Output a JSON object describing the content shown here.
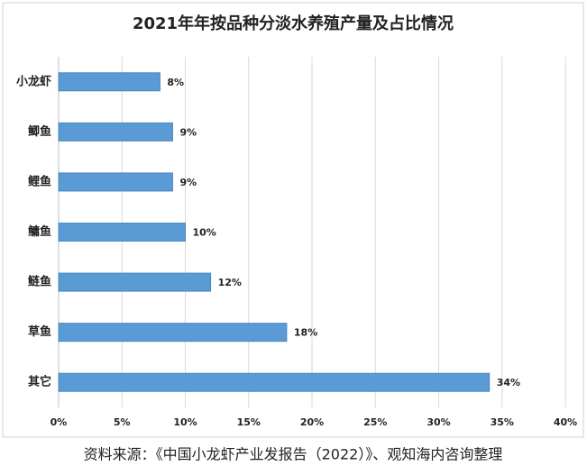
{
  "chart_data": {
    "type": "bar",
    "orientation": "horizontal",
    "title": "2021年年按品种分淡水养殖产量及占比情况",
    "categories": [
      "小龙虾",
      "鲫鱼",
      "鲤鱼",
      "鳙鱼",
      "鲢鱼",
      "草鱼",
      "其它"
    ],
    "values": [
      8,
      9,
      9,
      10,
      12,
      18,
      34
    ],
    "value_labels": [
      "8%",
      "9%",
      "9%",
      "10%",
      "12%",
      "18%",
      "34%"
    ],
    "color": "#5b9bd5",
    "xlim": [
      0,
      40
    ],
    "xticks": [
      {
        "value": 0,
        "label": "0%"
      },
      {
        "value": 5,
        "label": "5%"
      },
      {
        "value": 10,
        "label": "10%"
      },
      {
        "value": 15,
        "label": "15%"
      },
      {
        "value": 20,
        "label": "20%"
      },
      {
        "value": 25,
        "label": "25%"
      },
      {
        "value": 30,
        "label": "30%"
      },
      {
        "value": 35,
        "label": "35%"
      },
      {
        "value": 40,
        "label": "40%"
      }
    ],
    "grid": true,
    "source": "资料来源：《中国小龙虾产业发报告（2022）》、观知海内咨询整理"
  }
}
